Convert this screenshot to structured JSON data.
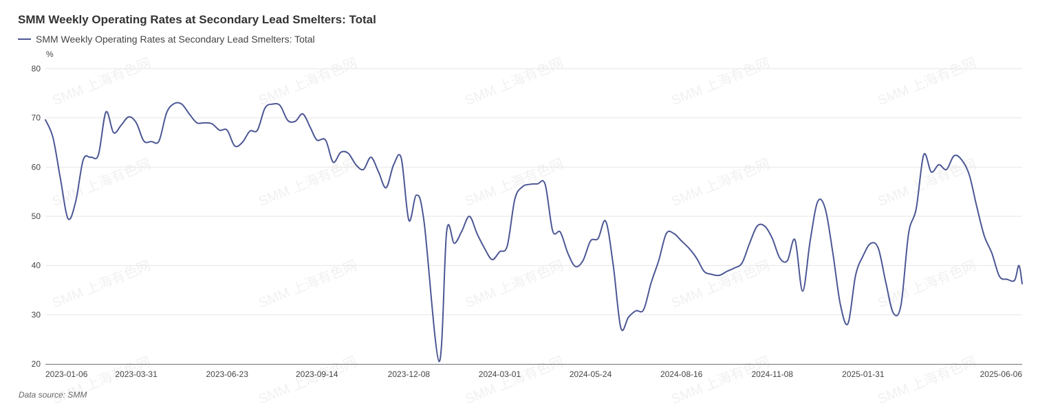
{
  "page": {
    "title": "SMM Weekly Operating Rates at Secondary Lead Smelters: Total",
    "source": "Data source:  SMM",
    "watermark": "SMM 上海有色网"
  },
  "chart_data": {
    "type": "line",
    "title": "SMM Weekly Operating Rates at Secondary Lead Smelters: Total",
    "xlabel": "",
    "ylabel": "%",
    "ylim": [
      20,
      80
    ],
    "yticks": [
      20,
      30,
      40,
      50,
      60,
      70,
      80
    ],
    "xlim": [
      "2023-01-06",
      "2025-06-27"
    ],
    "xticks": [
      "2023-01-06",
      "2023-03-31",
      "2023-06-23",
      "2023-09-14",
      "2023-12-08",
      "2024-03-01",
      "2024-05-24",
      "2024-08-16",
      "2024-11-08",
      "2025-01-31",
      "2025-06-06"
    ],
    "grid": "horizontal",
    "legend_position": "top-left",
    "series": [
      {
        "name": "SMM Weekly Operating Rates at Secondary Lead Smelters: Total",
        "color": "#4b5694",
        "points": [
          [
            "2023-01-06",
            69.6
          ],
          [
            "2023-01-13",
            66.0
          ],
          [
            "2023-01-20",
            57.5
          ],
          [
            "2023-01-27",
            49.5
          ],
          [
            "2023-02-03",
            53.0
          ],
          [
            "2023-02-10",
            61.5
          ],
          [
            "2023-02-17",
            62.0
          ],
          [
            "2023-02-24",
            62.5
          ],
          [
            "2023-03-03",
            71.2
          ],
          [
            "2023-03-10",
            67.0
          ],
          [
            "2023-03-17",
            68.5
          ],
          [
            "2023-03-24",
            70.2
          ],
          [
            "2023-03-31",
            69.0
          ],
          [
            "2023-04-07",
            65.3
          ],
          [
            "2023-04-14",
            65.2
          ],
          [
            "2023-04-21",
            65.3
          ],
          [
            "2023-04-28",
            71.0
          ],
          [
            "2023-05-05",
            72.9
          ],
          [
            "2023-05-12",
            72.8
          ],
          [
            "2023-05-19",
            70.8
          ],
          [
            "2023-05-26",
            69.0
          ],
          [
            "2023-06-02",
            69.0
          ],
          [
            "2023-06-09",
            68.8
          ],
          [
            "2023-06-16",
            67.5
          ],
          [
            "2023-06-23",
            67.5
          ],
          [
            "2023-06-30",
            64.3
          ],
          [
            "2023-07-07",
            65.0
          ],
          [
            "2023-07-14",
            67.3
          ],
          [
            "2023-07-21",
            67.5
          ],
          [
            "2023-07-28",
            72.0
          ],
          [
            "2023-08-04",
            72.8
          ],
          [
            "2023-08-11",
            72.5
          ],
          [
            "2023-08-18",
            69.5
          ],
          [
            "2023-08-25",
            69.3
          ],
          [
            "2023-09-01",
            70.8
          ],
          [
            "2023-09-08",
            68.0
          ],
          [
            "2023-09-14",
            65.5
          ],
          [
            "2023-09-22",
            65.5
          ],
          [
            "2023-09-29",
            61.0
          ],
          [
            "2023-10-06",
            63.0
          ],
          [
            "2023-10-13",
            62.8
          ],
          [
            "2023-10-20",
            60.5
          ],
          [
            "2023-10-27",
            59.5
          ],
          [
            "2023-11-03",
            62.0
          ],
          [
            "2023-11-10",
            59.0
          ],
          [
            "2023-11-17",
            55.8
          ],
          [
            "2023-11-24",
            60.5
          ],
          [
            "2023-12-01",
            61.8
          ],
          [
            "2023-12-08",
            49.2
          ],
          [
            "2023-12-15",
            54.3
          ],
          [
            "2023-12-22",
            49.0
          ],
          [
            "2024-01-05",
            20.5
          ],
          [
            "2024-01-12",
            47.0
          ],
          [
            "2024-01-19",
            44.5
          ],
          [
            "2024-01-26",
            47.0
          ],
          [
            "2024-02-02",
            50.0
          ],
          [
            "2024-02-09",
            46.5
          ],
          [
            "2024-02-16",
            43.5
          ],
          [
            "2024-02-23",
            41.2
          ],
          [
            "2024-03-01",
            42.8
          ],
          [
            "2024-03-08",
            44.0
          ],
          [
            "2024-03-15",
            53.5
          ],
          [
            "2024-03-22",
            56.0
          ],
          [
            "2024-03-29",
            56.5
          ],
          [
            "2024-04-05",
            56.6
          ],
          [
            "2024-04-12",
            56.5
          ],
          [
            "2024-04-19",
            47.0
          ],
          [
            "2024-04-26",
            46.8
          ],
          [
            "2024-05-03",
            42.5
          ],
          [
            "2024-05-10",
            39.8
          ],
          [
            "2024-05-17",
            41.0
          ],
          [
            "2024-05-24",
            45.0
          ],
          [
            "2024-05-31",
            45.5
          ],
          [
            "2024-06-07",
            49.0
          ],
          [
            "2024-06-14",
            40.0
          ],
          [
            "2024-06-21",
            27.3
          ],
          [
            "2024-06-28",
            29.5
          ],
          [
            "2024-07-05",
            30.8
          ],
          [
            "2024-07-12",
            31.0
          ],
          [
            "2024-07-19",
            36.5
          ],
          [
            "2024-07-26",
            41.0
          ],
          [
            "2024-08-02",
            46.5
          ],
          [
            "2024-08-09",
            46.5
          ],
          [
            "2024-08-16",
            45.0
          ],
          [
            "2024-08-23",
            43.5
          ],
          [
            "2024-08-30",
            41.5
          ],
          [
            "2024-09-06",
            38.8
          ],
          [
            "2024-09-13",
            38.2
          ],
          [
            "2024-09-20",
            38.0
          ],
          [
            "2024-09-27",
            38.8
          ],
          [
            "2024-10-04",
            39.5
          ],
          [
            "2024-10-11",
            40.5
          ],
          [
            "2024-10-18",
            44.5
          ],
          [
            "2024-10-25",
            48.0
          ],
          [
            "2024-11-01",
            48.0
          ],
          [
            "2024-11-08",
            45.5
          ],
          [
            "2024-11-15",
            41.5
          ],
          [
            "2024-11-22",
            41.0
          ],
          [
            "2024-11-29",
            45.2
          ],
          [
            "2024-12-06",
            34.8
          ],
          [
            "2024-12-13",
            45.0
          ],
          [
            "2024-12-20",
            53.0
          ],
          [
            "2024-12-27",
            51.5
          ],
          [
            "2025-01-03",
            42.5
          ],
          [
            "2025-01-10",
            32.0
          ],
          [
            "2025-01-17",
            28.2
          ],
          [
            "2025-01-24",
            38.0
          ],
          [
            "2025-01-31",
            42.0
          ],
          [
            "2025-02-07",
            44.5
          ],
          [
            "2025-02-14",
            43.5
          ],
          [
            "2025-02-21",
            36.5
          ],
          [
            "2025-02-28",
            30.3
          ],
          [
            "2025-03-07",
            32.0
          ],
          [
            "2025-03-14",
            46.5
          ],
          [
            "2025-03-21",
            51.5
          ],
          [
            "2025-03-28",
            62.5
          ],
          [
            "2025-04-04",
            59.0
          ],
          [
            "2025-04-11",
            60.5
          ],
          [
            "2025-04-18",
            59.5
          ],
          [
            "2025-04-25",
            62.3
          ],
          [
            "2025-05-02",
            61.5
          ],
          [
            "2025-05-09",
            58.5
          ],
          [
            "2025-05-16",
            52.0
          ],
          [
            "2025-05-23",
            46.0
          ],
          [
            "2025-05-30",
            42.5
          ],
          [
            "2025-06-06",
            37.8
          ],
          [
            "2025-06-13",
            37.2
          ],
          [
            "2025-06-20",
            37.0
          ],
          [
            "2025-06-24",
            40.0
          ],
          [
            "2025-06-27",
            36.3
          ]
        ]
      }
    ]
  }
}
